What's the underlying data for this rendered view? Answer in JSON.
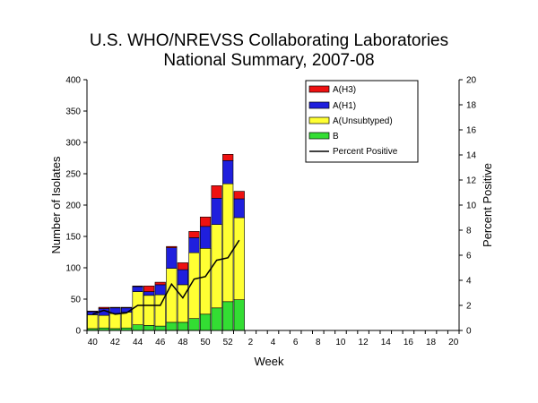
{
  "chart_data": {
    "type": "bar",
    "title": [
      "U.S. WHO/NREVSS Collaborating Laboratories",
      "National Summary, 2007-08"
    ],
    "xlabel": "Week",
    "ylabel": "Number of Isolates",
    "y2label": "Percent Positive",
    "ylim": [
      0,
      400
    ],
    "y2lim": [
      0,
      20
    ],
    "yticks": [
      "0",
      "50",
      "100",
      "150",
      "200",
      "250",
      "300",
      "350",
      "400"
    ],
    "y2ticks": [
      "0",
      "2",
      "4",
      "6",
      "8",
      "10",
      "12",
      "14",
      "16",
      "18",
      "20"
    ],
    "xticks": [
      "40",
      "42",
      "44",
      "46",
      "48",
      "50",
      "52",
      "2",
      "4",
      "6",
      "8",
      "10",
      "12",
      "14",
      "16",
      "18",
      "20"
    ],
    "stacked": true,
    "legend_position": "top-right",
    "categories": [
      "40",
      "41",
      "42",
      "43",
      "44",
      "45",
      "46",
      "47",
      "48",
      "49",
      "50",
      "51",
      "52",
      "1",
      "2",
      "3",
      "4",
      "5",
      "6",
      "7",
      "8",
      "9",
      "10",
      "11",
      "12",
      "13",
      "14",
      "15",
      "16",
      "17",
      "18",
      "19",
      "20"
    ],
    "series": [
      {
        "name": "B",
        "color": "#33dd33",
        "values": [
          3,
          4,
          3,
          4,
          9,
          8,
          7,
          13,
          13,
          19,
          26,
          36,
          46,
          49,
          0,
          0,
          0,
          0,
          0,
          0,
          0,
          0,
          0,
          0,
          0,
          0,
          0,
          0,
          0,
          0,
          0,
          0,
          0
        ]
      },
      {
        "name": "A(Unsubtyped)",
        "color": "#ffff33",
        "values": [
          22,
          20,
          24,
          25,
          53,
          48,
          50,
          86,
          60,
          105,
          105,
          133,
          188,
          131,
          0,
          0,
          0,
          0,
          0,
          0,
          0,
          0,
          0,
          0,
          0,
          0,
          0,
          0,
          0,
          0,
          0,
          0,
          0
        ]
      },
      {
        "name": "A(H1)",
        "color": "#1f1fdd",
        "values": [
          5,
          11,
          9,
          7,
          8,
          6,
          16,
          33,
          24,
          24,
          35,
          42,
          37,
          30,
          0,
          0,
          0,
          0,
          0,
          0,
          0,
          0,
          0,
          0,
          0,
          0,
          0,
          0,
          0,
          0,
          0,
          0,
          0
        ]
      },
      {
        "name": "A(H3)",
        "color": "#ee1111",
        "values": [
          1,
          2,
          1,
          1,
          1,
          9,
          4,
          2,
          11,
          10,
          15,
          20,
          10,
          12,
          0,
          0,
          0,
          0,
          0,
          0,
          0,
          0,
          0,
          0,
          0,
          0,
          0,
          0,
          0,
          0,
          0,
          0,
          0
        ]
      }
    ],
    "line": {
      "name": "Percent Positive",
      "color": "#000000",
      "values": [
        1.3,
        1.6,
        1.3,
        1.4,
        2.0,
        2.0,
        2.0,
        3.7,
        2.6,
        4.1,
        4.3,
        5.6,
        5.8,
        7.2
      ]
    }
  }
}
